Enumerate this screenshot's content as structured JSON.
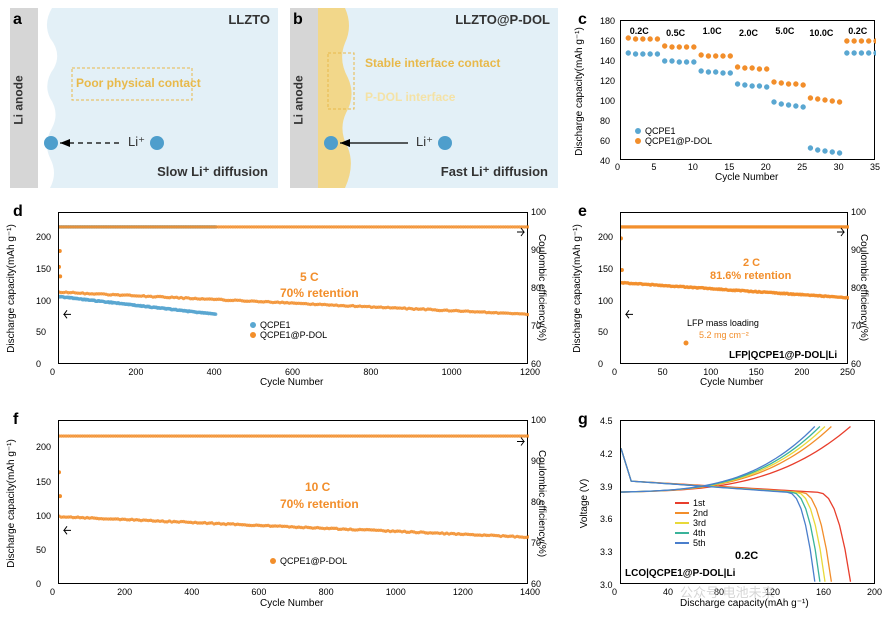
{
  "panels": {
    "a": {
      "label": "a",
      "title": "LLZTO",
      "anode": "Li anode",
      "contact_text": "Poor physical contact",
      "ion_label": "Li⁺",
      "diffusion": "Slow Li⁺ diffusion"
    },
    "b": {
      "label": "b",
      "title": "LLZTO@P-DOL",
      "anode": "Li anode",
      "contact_text": "Stable interface contact",
      "interface_text": "P-DOL interface",
      "ion_label": "Li⁺",
      "diffusion": "Fast Li⁺ diffusion"
    },
    "c": {
      "label": "c",
      "xlabel": "Cycle Number",
      "ylabel": "Discharge capacity(mAh g⁻¹)",
      "xlim": [
        0,
        35
      ],
      "ylim": [
        40,
        180
      ],
      "xticks": [
        0,
        5,
        10,
        15,
        20,
        25,
        30,
        35
      ],
      "yticks": [
        40,
        60,
        80,
        100,
        120,
        140,
        160,
        180
      ],
      "rate_labels": [
        "0.2C",
        "0.5C",
        "1.0C",
        "2.0C",
        "5.0C",
        "10.0C",
        "0.2C"
      ],
      "rate_positions": [
        2.5,
        7.5,
        12.5,
        17.5,
        22.5,
        27.5,
        32.5
      ],
      "series": {
        "QCPE1": {
          "color": "#5aa7d1",
          "data": [
            [
              1,
              148
            ],
            [
              2,
              147
            ],
            [
              3,
              147
            ],
            [
              4,
              147
            ],
            [
              5,
              147
            ],
            [
              6,
              140
            ],
            [
              7,
              140
            ],
            [
              8,
              139
            ],
            [
              9,
              139
            ],
            [
              10,
              139
            ],
            [
              11,
              130
            ],
            [
              12,
              129
            ],
            [
              13,
              129
            ],
            [
              14,
              128
            ],
            [
              15,
              128
            ],
            [
              16,
              117
            ],
            [
              17,
              116
            ],
            [
              18,
              115
            ],
            [
              19,
              115
            ],
            [
              20,
              114
            ],
            [
              21,
              99
            ],
            [
              22,
              97
            ],
            [
              23,
              96
            ],
            [
              24,
              95
            ],
            [
              25,
              94
            ],
            [
              26,
              53
            ],
            [
              27,
              51
            ],
            [
              28,
              50
            ],
            [
              29,
              49
            ],
            [
              30,
              48
            ],
            [
              31,
              148
            ],
            [
              32,
              148
            ],
            [
              33,
              148
            ],
            [
              34,
              148
            ],
            [
              35,
              148
            ]
          ]
        },
        "QCPE1@P-DOL": {
          "color": "#f28e2b",
          "data": [
            [
              1,
              163
            ],
            [
              2,
              162
            ],
            [
              3,
              162
            ],
            [
              4,
              162
            ],
            [
              5,
              162
            ],
            [
              6,
              155
            ],
            [
              7,
              154
            ],
            [
              8,
              154
            ],
            [
              9,
              154
            ],
            [
              10,
              154
            ],
            [
              11,
              146
            ],
            [
              12,
              145
            ],
            [
              13,
              145
            ],
            [
              14,
              145
            ],
            [
              15,
              145
            ],
            [
              16,
              134
            ],
            [
              17,
              133
            ],
            [
              18,
              133
            ],
            [
              19,
              132
            ],
            [
              20,
              132
            ],
            [
              21,
              119
            ],
            [
              22,
              118
            ],
            [
              23,
              117
            ],
            [
              24,
              117
            ],
            [
              25,
              116
            ],
            [
              26,
              103
            ],
            [
              27,
              102
            ],
            [
              28,
              101
            ],
            [
              29,
              100
            ],
            [
              30,
              99
            ],
            [
              31,
              160
            ],
            [
              32,
              160
            ],
            [
              33,
              160
            ],
            [
              34,
              160
            ],
            [
              35,
              160
            ]
          ]
        }
      },
      "legend": [
        "QCPE1",
        "QCPE1@P-DOL"
      ]
    },
    "d": {
      "label": "d",
      "xlabel": "Cycle Number",
      "ylabel": "Discharge capacity(mAh g⁻¹)",
      "y2label": "Coulombic efficiency(%)",
      "xlim": [
        0,
        1200
      ],
      "ylim": [
        0,
        240
      ],
      "y2lim": [
        60,
        100
      ],
      "xticks": [
        0,
        200,
        400,
        600,
        800,
        1000,
        1200
      ],
      "yticks": [
        0,
        50,
        100,
        150,
        200
      ],
      "y2ticks": [
        60,
        70,
        80,
        90,
        100
      ],
      "retention": "70% retention",
      "rate": "5 C",
      "series": {
        "QCPE1_cap": {
          "color": "#5aa7d1",
          "start": [
            0,
            108
          ],
          "end": [
            400,
            80
          ]
        },
        "QCPE1PDOL_cap": {
          "color": "#f28e2b",
          "start": [
            0,
            115
          ],
          "end": [
            1200,
            80
          ]
        },
        "QCPE1_ce": {
          "color": "#5aa7d1",
          "val": 218,
          "end_x": 400
        },
        "QCPE1PDOL_ce": {
          "color": "#f28e2b",
          "val": 218,
          "end_x": 1200
        }
      },
      "legend": [
        "QCPE1",
        "QCPE1@P-DOL"
      ]
    },
    "e": {
      "label": "e",
      "xlabel": "Cycle Number",
      "ylabel": "Discharge capacity(mAh g⁻¹)",
      "y2label": "Coulombic efficiency(%)",
      "xlim": [
        0,
        250
      ],
      "ylim": [
        0,
        240
      ],
      "y2lim": [
        60,
        100
      ],
      "xticks": [
        0,
        50,
        100,
        150,
        200,
        250
      ],
      "yticks": [
        0,
        50,
        100,
        150,
        200
      ],
      "y2ticks": [
        60,
        70,
        80,
        90,
        100
      ],
      "retention": "81.6% retention",
      "rate": "2 C",
      "loading_label": "LFP mass loading",
      "loading_val": "5.2 mg cm⁻²",
      "cell_label": "LFP|QCPE1@P-DOL|Li",
      "cap": {
        "color": "#f28e2b",
        "start": [
          0,
          130
        ],
        "end": [
          250,
          106
        ]
      },
      "ce": {
        "color": "#f28e2b",
        "val": 218
      }
    },
    "f": {
      "label": "f",
      "xlabel": "Cycle Number",
      "ylabel": "Discharge capacity(mAh g⁻¹)",
      "y2label": "Coulombic efficiency(%)",
      "xlim": [
        0,
        1400
      ],
      "ylim": [
        0,
        240
      ],
      "y2lim": [
        60,
        100
      ],
      "xticks": [
        0,
        200,
        400,
        600,
        800,
        1000,
        1200,
        1400
      ],
      "yticks": [
        0,
        50,
        100,
        150,
        200
      ],
      "y2ticks": [
        60,
        70,
        80,
        90,
        100
      ],
      "retention": "70% retention",
      "rate": "10 C",
      "legend": [
        "QCPE1@P-DOL"
      ],
      "cap": {
        "color": "#f28e2b",
        "start": [
          0,
          100
        ],
        "end": [
          1400,
          70
        ]
      },
      "ce": {
        "color": "#f28e2b",
        "val": 218
      }
    },
    "g": {
      "label": "g",
      "xlabel": "Discharge capacity(mAh g⁻¹)",
      "ylabel": "Voltage (V)",
      "xlim": [
        0,
        200
      ],
      "ylim": [
        3.0,
        4.5
      ],
      "xticks": [
        0,
        40,
        80,
        120,
        160,
        200
      ],
      "yticks": [
        "3.0",
        "3.3",
        "3.6",
        "3.9",
        "4.2",
        "4.5"
      ],
      "rate": "0.2C",
      "cell_label": "LCO|QCPE1@P-DOL|Li",
      "cycles": [
        {
          "label": "1st",
          "color": "#e83e2c",
          "cap": 180
        },
        {
          "label": "2nd",
          "color": "#f28e2b",
          "cap": 165
        },
        {
          "label": "3rd",
          "color": "#e8d93a",
          "cap": 160
        },
        {
          "label": "4th",
          "color": "#3ab39a",
          "cap": 156
        },
        {
          "label": "5th",
          "color": "#4a7ecc",
          "cap": 152
        }
      ]
    }
  },
  "colors": {
    "qcpe1": "#5aa7d1",
    "qcpe1pdol": "#f28e2b",
    "bg_schematic": "#e3f0f7",
    "liyellow": "#f2d78a"
  },
  "watermark": "公众号 电池未来"
}
